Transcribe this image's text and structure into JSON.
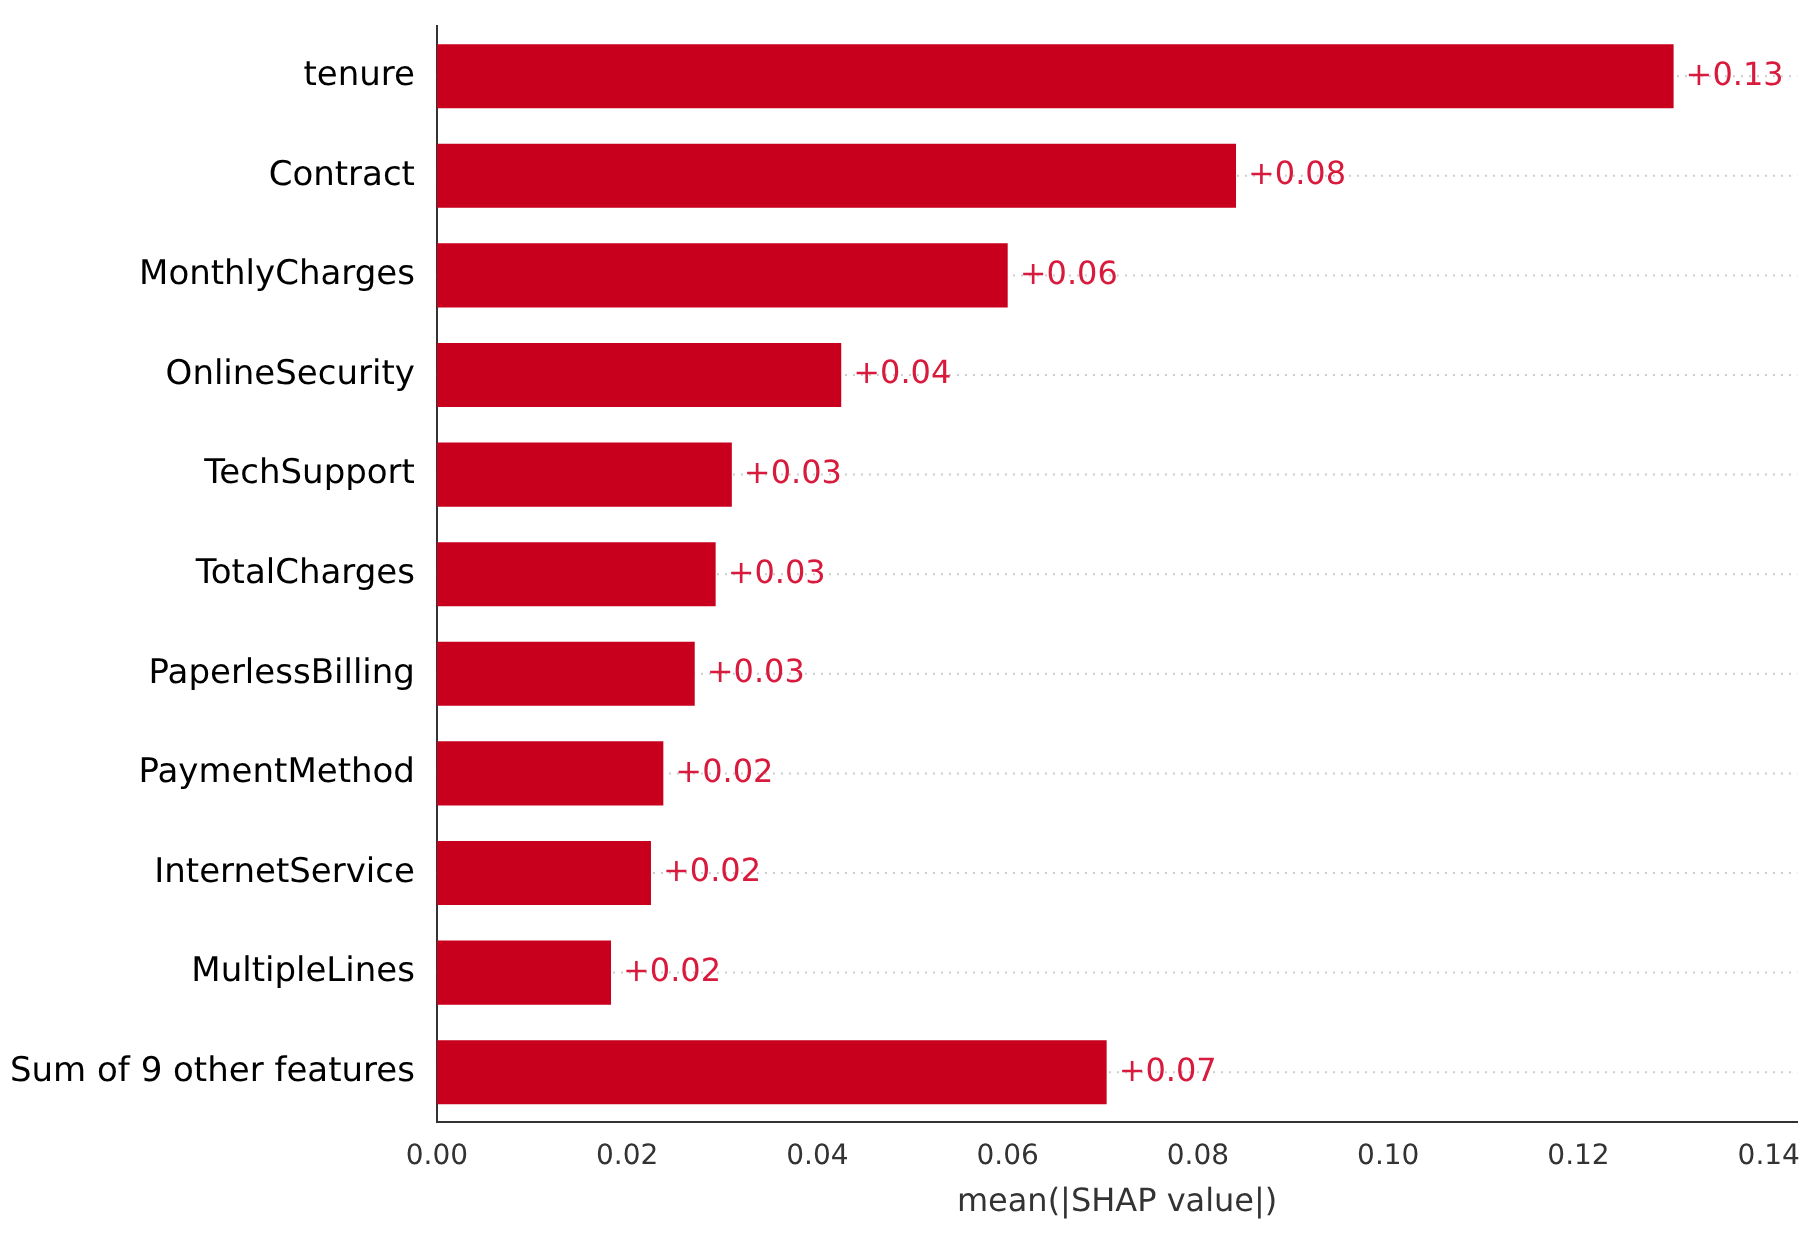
{
  "chart_data": {
    "type": "bar",
    "orientation": "horizontal",
    "xlabel": "mean(|SHAP value|)",
    "categories": [
      "tenure",
      "Contract",
      "MonthlyCharges",
      "OnlineSecurity",
      "TechSupport",
      "TotalCharges",
      "PaperlessBilling",
      "PaymentMethod",
      "InternetService",
      "MultipleLines",
      "Sum of 9 other features"
    ],
    "values": [
      0.13,
      0.084,
      0.06,
      0.0425,
      0.031,
      0.0293,
      0.0271,
      0.0238,
      0.0225,
      0.0183,
      0.0704
    ],
    "value_labels": [
      "+0.13",
      "+0.08",
      "+0.06",
      "+0.04",
      "+0.03",
      "+0.03",
      "+0.03",
      "+0.02",
      "+0.02",
      "+0.02",
      "+0.07"
    ],
    "color": "#c8001e",
    "xlim": [
      0,
      0.143
    ],
    "xticks": [
      {
        "value": 0,
        "label": "0.00"
      },
      {
        "value": 0.02,
        "label": "0.02"
      },
      {
        "value": 0.04,
        "label": "0.04"
      },
      {
        "value": 0.06,
        "label": "0.06"
      },
      {
        "value": 0.08,
        "label": "0.08"
      },
      {
        "value": 0.1,
        "label": "0.10"
      },
      {
        "value": 0.12,
        "label": "0.12"
      },
      {
        "value": 0.14,
        "label": "0.14"
      }
    ],
    "grid": "y",
    "legend": false
  }
}
